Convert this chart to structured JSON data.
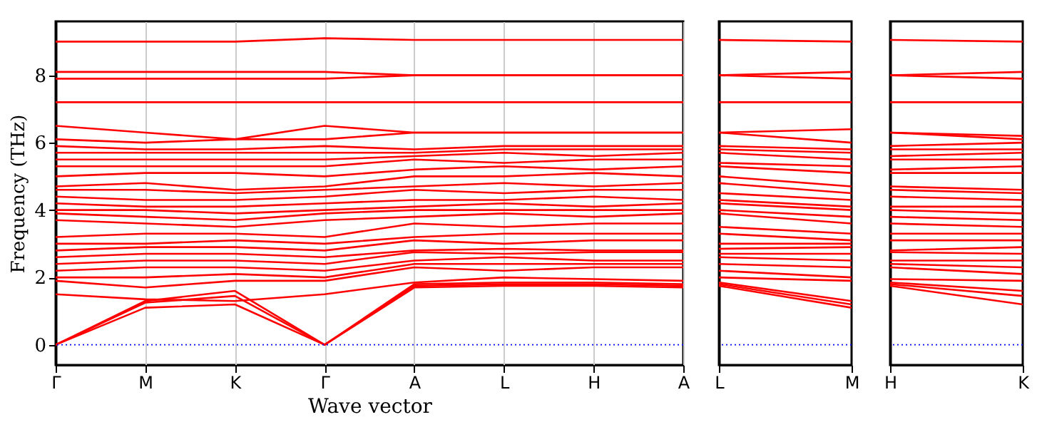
{
  "chart_data": [
    {
      "type": "line",
      "ylabel": "Frequency (THz)",
      "xlabel": "Wave vector",
      "grid": "x",
      "categories": [
        "Γ",
        "M",
        "K",
        "Γ",
        "A",
        "L",
        "H",
        "A"
      ],
      "ylim": [
        -0.6,
        9.6
      ],
      "yticks": [
        0,
        2,
        4,
        6,
        8
      ],
      "ref_lines": [
        {
          "axis": "y",
          "value": 0,
          "color": "#0000ff",
          "line_style": "dotted"
        }
      ],
      "series": [
        {
          "color": "#ff0000",
          "values": [
            0,
            1.1,
            1.2,
            0,
            1.7,
            1.75,
            1.75,
            1.7
          ]
        },
        {
          "color": "#ff0000",
          "values": [
            0,
            1.25,
            1.45,
            0,
            1.75,
            1.8,
            1.8,
            1.75
          ]
        },
        {
          "color": "#ff0000",
          "values": [
            0,
            1.3,
            1.6,
            0,
            1.8,
            1.85,
            1.85,
            1.8
          ]
        },
        {
          "color": "#ff0000",
          "values": [
            1.5,
            1.35,
            1.3,
            1.5,
            1.85,
            2.0,
            1.95,
            1.9
          ]
        },
        {
          "color": "#ff0000",
          "values": [
            1.9,
            1.7,
            1.9,
            1.9,
            2.3,
            2.2,
            2.3,
            2.3
          ]
        },
        {
          "color": "#ff0000",
          "values": [
            2.0,
            2.0,
            2.1,
            2.0,
            2.4,
            2.4,
            2.4,
            2.4
          ]
        },
        {
          "color": "#ff0000",
          "values": [
            2.2,
            2.3,
            2.3,
            2.2,
            2.5,
            2.6,
            2.5,
            2.5
          ]
        },
        {
          "color": "#ff0000",
          "values": [
            2.4,
            2.5,
            2.5,
            2.4,
            2.75,
            2.7,
            2.75,
            2.75
          ]
        },
        {
          "color": "#ff0000",
          "values": [
            2.6,
            2.7,
            2.7,
            2.6,
            2.8,
            2.85,
            2.8,
            2.8
          ]
        },
        {
          "color": "#ff0000",
          "values": [
            2.8,
            2.9,
            2.9,
            2.8,
            3.1,
            3.0,
            3.1,
            3.1
          ]
        },
        {
          "color": "#ff0000",
          "values": [
            3.0,
            3.0,
            3.1,
            3.0,
            3.2,
            3.3,
            3.3,
            3.3
          ]
        },
        {
          "color": "#ff0000",
          "values": [
            3.2,
            3.3,
            3.3,
            3.2,
            3.6,
            3.5,
            3.6,
            3.6
          ]
        },
        {
          "color": "#ff0000",
          "values": [
            3.7,
            3.6,
            3.5,
            3.7,
            3.8,
            3.9,
            3.8,
            3.9
          ]
        },
        {
          "color": "#ff0000",
          "values": [
            3.9,
            3.8,
            3.7,
            3.9,
            4.0,
            4.0,
            4.0,
            4.0
          ]
        },
        {
          "color": "#ff0000",
          "values": [
            4.0,
            4.0,
            3.9,
            4.0,
            4.1,
            4.2,
            4.1,
            4.2
          ]
        },
        {
          "color": "#ff0000",
          "values": [
            4.2,
            4.1,
            4.1,
            4.2,
            4.3,
            4.3,
            4.4,
            4.3
          ]
        },
        {
          "color": "#ff0000",
          "values": [
            4.4,
            4.3,
            4.3,
            4.4,
            4.6,
            4.5,
            4.6,
            4.6
          ]
        },
        {
          "color": "#ff0000",
          "values": [
            4.6,
            4.6,
            4.5,
            4.6,
            4.7,
            4.8,
            4.7,
            4.8
          ]
        },
        {
          "color": "#ff0000",
          "values": [
            4.7,
            4.8,
            4.6,
            4.7,
            5.0,
            5.0,
            5.1,
            5.0
          ]
        },
        {
          "color": "#ff0000",
          "values": [
            5.0,
            5.1,
            5.1,
            5.0,
            5.2,
            5.3,
            5.2,
            5.3
          ]
        },
        {
          "color": "#ff0000",
          "values": [
            5.3,
            5.3,
            5.3,
            5.3,
            5.5,
            5.4,
            5.5,
            5.5
          ]
        },
        {
          "color": "#ff0000",
          "values": [
            5.5,
            5.5,
            5.5,
            5.5,
            5.6,
            5.7,
            5.6,
            5.7
          ]
        },
        {
          "color": "#ff0000",
          "values": [
            5.7,
            5.7,
            5.7,
            5.7,
            5.7,
            5.8,
            5.8,
            5.8
          ]
        },
        {
          "color": "#ff0000",
          "values": [
            5.9,
            5.8,
            5.8,
            5.9,
            5.8,
            5.9,
            5.9,
            5.9
          ]
        },
        {
          "color": "#ff0000",
          "values": [
            6.1,
            6.0,
            6.1,
            6.1,
            6.3,
            6.3,
            6.3,
            6.3
          ]
        },
        {
          "color": "#ff0000",
          "values": [
            6.5,
            6.3,
            6.1,
            6.5,
            6.3,
            6.3,
            6.3,
            6.3
          ]
        },
        {
          "color": "#ff0000",
          "values": [
            7.2,
            7.2,
            7.2,
            7.2,
            7.2,
            7.2,
            7.2,
            7.2
          ]
        },
        {
          "color": "#ff0000",
          "values": [
            7.9,
            7.9,
            7.9,
            7.9,
            8.0,
            8.0,
            8.0,
            8.0
          ]
        },
        {
          "color": "#ff0000",
          "values": [
            8.1,
            8.1,
            8.1,
            8.1,
            8.0,
            8.0,
            8.0,
            8.0
          ]
        },
        {
          "color": "#ff0000",
          "values": [
            9.0,
            9.0,
            9.0,
            9.1,
            9.05,
            9.05,
            9.05,
            9.05
          ]
        }
      ]
    },
    {
      "type": "line",
      "tick_labels": "x",
      "categories": [
        "L",
        "M"
      ],
      "ylim": [
        -0.6,
        9.6
      ],
      "yticks": [
        0,
        2,
        4,
        6,
        8
      ],
      "ref_lines": [
        {
          "axis": "y",
          "value": 0,
          "color": "#0000ff",
          "line_style": "dotted"
        }
      ],
      "series": [
        {
          "color": "#ff0000",
          "values": [
            1.75,
            1.1
          ]
        },
        {
          "color": "#ff0000",
          "values": [
            1.8,
            1.2
          ]
        },
        {
          "color": "#ff0000",
          "values": [
            1.85,
            1.3
          ]
        },
        {
          "color": "#ff0000",
          "values": [
            2.0,
            1.9
          ]
        },
        {
          "color": "#ff0000",
          "values": [
            2.2,
            2.0
          ]
        },
        {
          "color": "#ff0000",
          "values": [
            2.4,
            2.3
          ]
        },
        {
          "color": "#ff0000",
          "values": [
            2.6,
            2.5
          ]
        },
        {
          "color": "#ff0000",
          "values": [
            2.7,
            2.7
          ]
        },
        {
          "color": "#ff0000",
          "values": [
            2.85,
            2.9
          ]
        },
        {
          "color": "#ff0000",
          "values": [
            3.0,
            3.0
          ]
        },
        {
          "color": "#ff0000",
          "values": [
            3.3,
            3.1
          ]
        },
        {
          "color": "#ff0000",
          "values": [
            3.5,
            3.3
          ]
        },
        {
          "color": "#ff0000",
          "values": [
            3.9,
            3.6
          ]
        },
        {
          "color": "#ff0000",
          "values": [
            4.0,
            3.8
          ]
        },
        {
          "color": "#ff0000",
          "values": [
            4.2,
            4.0
          ]
        },
        {
          "color": "#ff0000",
          "values": [
            4.3,
            4.1
          ]
        },
        {
          "color": "#ff0000",
          "values": [
            4.5,
            4.3
          ]
        },
        {
          "color": "#ff0000",
          "values": [
            4.8,
            4.5
          ]
        },
        {
          "color": "#ff0000",
          "values": [
            5.0,
            4.7
          ]
        },
        {
          "color": "#ff0000",
          "values": [
            5.3,
            5.1
          ]
        },
        {
          "color": "#ff0000",
          "values": [
            5.4,
            5.3
          ]
        },
        {
          "color": "#ff0000",
          "values": [
            5.7,
            5.5
          ]
        },
        {
          "color": "#ff0000",
          "values": [
            5.8,
            5.7
          ]
        },
        {
          "color": "#ff0000",
          "values": [
            5.9,
            5.8
          ]
        },
        {
          "color": "#ff0000",
          "values": [
            6.3,
            6.0
          ]
        },
        {
          "color": "#ff0000",
          "values": [
            6.3,
            6.4
          ]
        },
        {
          "color": "#ff0000",
          "values": [
            7.2,
            7.2
          ]
        },
        {
          "color": "#ff0000",
          "values": [
            8.0,
            7.9
          ]
        },
        {
          "color": "#ff0000",
          "values": [
            8.0,
            8.1
          ]
        },
        {
          "color": "#ff0000",
          "values": [
            9.05,
            9.0
          ]
        }
      ]
    },
    {
      "type": "line",
      "tick_labels": "x",
      "categories": [
        "H",
        "K"
      ],
      "ylim": [
        -0.6,
        9.6
      ],
      "yticks": [
        0,
        2,
        4,
        6,
        8
      ],
      "ref_lines": [
        {
          "axis": "y",
          "value": 0,
          "color": "#0000ff",
          "line_style": "dotted"
        }
      ],
      "series": [
        {
          "color": "#ff0000",
          "values": [
            1.75,
            1.2
          ]
        },
        {
          "color": "#ff0000",
          "values": [
            1.8,
            1.45
          ]
        },
        {
          "color": "#ff0000",
          "values": [
            1.85,
            1.6
          ]
        },
        {
          "color": "#ff0000",
          "values": [
            1.95,
            1.9
          ]
        },
        {
          "color": "#ff0000",
          "values": [
            2.3,
            2.1
          ]
        },
        {
          "color": "#ff0000",
          "values": [
            2.4,
            2.3
          ]
        },
        {
          "color": "#ff0000",
          "values": [
            2.5,
            2.5
          ]
        },
        {
          "color": "#ff0000",
          "values": [
            2.75,
            2.7
          ]
        },
        {
          "color": "#ff0000",
          "values": [
            2.8,
            2.9
          ]
        },
        {
          "color": "#ff0000",
          "values": [
            3.1,
            3.1
          ]
        },
        {
          "color": "#ff0000",
          "values": [
            3.3,
            3.3
          ]
        },
        {
          "color": "#ff0000",
          "values": [
            3.6,
            3.5
          ]
        },
        {
          "color": "#ff0000",
          "values": [
            3.8,
            3.7
          ]
        },
        {
          "color": "#ff0000",
          "values": [
            4.0,
            3.9
          ]
        },
        {
          "color": "#ff0000",
          "values": [
            4.1,
            4.1
          ]
        },
        {
          "color": "#ff0000",
          "values": [
            4.4,
            4.3
          ]
        },
        {
          "color": "#ff0000",
          "values": [
            4.6,
            4.5
          ]
        },
        {
          "color": "#ff0000",
          "values": [
            4.7,
            4.6
          ]
        },
        {
          "color": "#ff0000",
          "values": [
            5.1,
            5.1
          ]
        },
        {
          "color": "#ff0000",
          "values": [
            5.2,
            5.3
          ]
        },
        {
          "color": "#ff0000",
          "values": [
            5.5,
            5.5
          ]
        },
        {
          "color": "#ff0000",
          "values": [
            5.6,
            5.7
          ]
        },
        {
          "color": "#ff0000",
          "values": [
            5.8,
            5.8
          ]
        },
        {
          "color": "#ff0000",
          "values": [
            5.9,
            6.0
          ]
        },
        {
          "color": "#ff0000",
          "values": [
            6.3,
            6.1
          ]
        },
        {
          "color": "#ff0000",
          "values": [
            6.3,
            6.2
          ]
        },
        {
          "color": "#ff0000",
          "values": [
            7.2,
            7.2
          ]
        },
        {
          "color": "#ff0000",
          "values": [
            8.0,
            7.9
          ]
        },
        {
          "color": "#ff0000",
          "values": [
            8.0,
            8.1
          ]
        },
        {
          "color": "#ff0000",
          "values": [
            9.05,
            9.0
          ]
        }
      ]
    }
  ]
}
